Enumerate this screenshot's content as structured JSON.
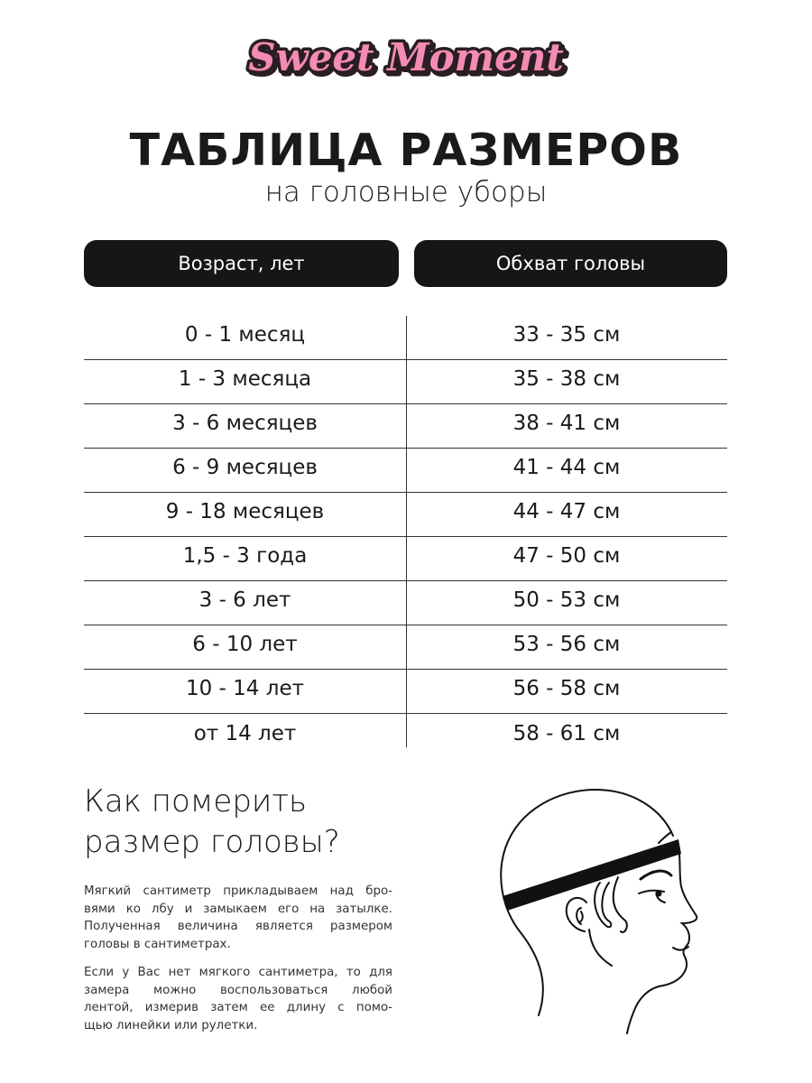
{
  "brand": {
    "logo_text": "Sweet Moment",
    "colors": {
      "pink": "#f48bb4",
      "outline": "#2a1e22"
    }
  },
  "header": {
    "title": "ТАБЛИЦА РАЗМЕРОВ",
    "subtitle": "на головные уборы"
  },
  "table": {
    "columns": [
      "Возраст, лет",
      "Обхват головы"
    ],
    "rows": [
      [
        "0 - 1 месяц",
        "33 - 35 см"
      ],
      [
        "1 - 3 месяца",
        "35 - 38 см"
      ],
      [
        "3 - 6 месяцев",
        "38 - 41 см"
      ],
      [
        "6 - 9 месяцев",
        "41 - 44 см"
      ],
      [
        "9 - 18 месяцев",
        "44 - 47 см"
      ],
      [
        "1,5 - 3 года",
        "47 - 50 см"
      ],
      [
        "3 - 6 лет",
        "50 - 53 см"
      ],
      [
        "6 - 10 лет",
        "53 - 56 см"
      ],
      [
        "10 - 14 лет",
        "56 - 58 см"
      ],
      [
        "от 14 лет",
        "58 - 61 см"
      ]
    ]
  },
  "howto": {
    "heading_lines": [
      "Как померить",
      "размер головы?"
    ],
    "paragraph1_lines": [
      "Мягкий сантиметр прикладываем над бро-",
      "вями ко лбу и замыкаем его на затылке.",
      "Полученная величина является размером",
      "головы в сантиметрах."
    ],
    "paragraph2_lines": [
      "Если у Вас нет мягкого сантиметра, то для",
      "замера можно воспользоваться любой",
      "лентой, измерив затем ее длину с помо-",
      "щью линейки или рулетки."
    ],
    "illustration": "head-with-measuring-tape"
  }
}
